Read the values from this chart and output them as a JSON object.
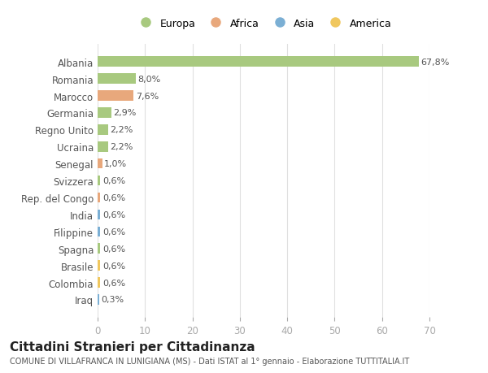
{
  "categories": [
    "Albania",
    "Romania",
    "Marocco",
    "Germania",
    "Regno Unito",
    "Ucraina",
    "Senegal",
    "Svizzera",
    "Rep. del Congo",
    "India",
    "Filippine",
    "Spagna",
    "Brasile",
    "Colombia",
    "Iraq"
  ],
  "values": [
    67.8,
    8.0,
    7.6,
    2.9,
    2.2,
    2.2,
    1.0,
    0.6,
    0.6,
    0.6,
    0.6,
    0.6,
    0.6,
    0.6,
    0.3
  ],
  "labels": [
    "67,8%",
    "8,0%",
    "7,6%",
    "2,9%",
    "2,2%",
    "2,2%",
    "1,0%",
    "0,6%",
    "0,6%",
    "0,6%",
    "0,6%",
    "0,6%",
    "0,6%",
    "0,6%",
    "0,3%"
  ],
  "continent": [
    "Europa",
    "Europa",
    "Africa",
    "Europa",
    "Europa",
    "Europa",
    "Africa",
    "Europa",
    "Africa",
    "Asia",
    "Asia",
    "Europa",
    "America",
    "America",
    "Asia"
  ],
  "colors": {
    "Europa": "#a8c97f",
    "Africa": "#e8a87c",
    "Asia": "#7bafd4",
    "America": "#f0c75e"
  },
  "title": "Cittadini Stranieri per Cittadinanza",
  "subtitle": "COMUNE DI VILLAFRANCA IN LUNIGIANA (MS) - Dati ISTAT al 1° gennaio - Elaborazione TUTTITALIA.IT",
  "xlim": [
    0,
    70
  ],
  "xticks": [
    0,
    10,
    20,
    30,
    40,
    50,
    60,
    70
  ],
  "bg_color": "#ffffff",
  "grid_color": "#e0e0e0",
  "bar_height": 0.6,
  "legend_order": [
    "Europa",
    "Africa",
    "Asia",
    "America"
  ]
}
